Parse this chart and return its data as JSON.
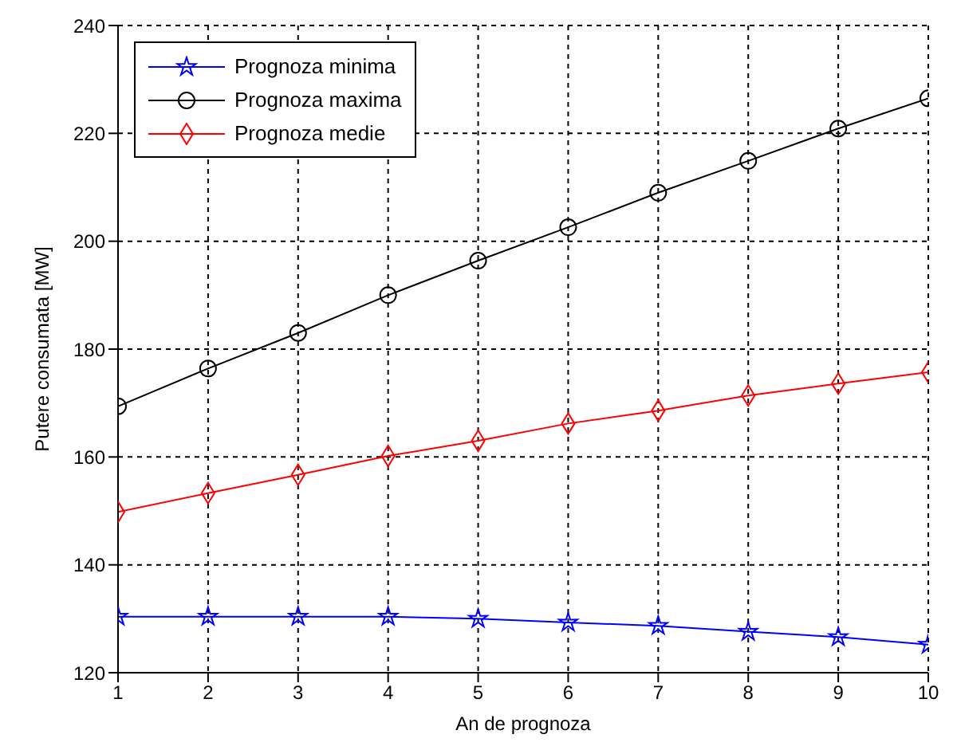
{
  "chart_data": {
    "type": "line",
    "xlabel": "An de prognoza",
    "ylabel": "Putere consumata [MW]",
    "x": [
      1,
      2,
      3,
      4,
      5,
      6,
      7,
      8,
      9,
      10
    ],
    "xlim": [
      1,
      10
    ],
    "xticks": [
      1,
      2,
      3,
      4,
      5,
      6,
      7,
      8,
      9,
      10
    ],
    "ylim": [
      120,
      240
    ],
    "yticks": [
      120,
      140,
      160,
      180,
      200,
      220,
      240
    ],
    "grid": true,
    "legend": "top left",
    "series": [
      {
        "name": "Prognoza minima",
        "color": "#0000ff",
        "marker": "star",
        "values": [
          130.4,
          130.4,
          130.4,
          130.4,
          130.0,
          129.3,
          128.7,
          127.6,
          126.6,
          125.2
        ]
      },
      {
        "name": "Prognoza maxima",
        "color": "#000000",
        "marker": "circle",
        "values": [
          169.4,
          176.4,
          183.0,
          190.0,
          196.4,
          202.6,
          209.0,
          214.9,
          220.9,
          226.5
        ]
      },
      {
        "name": "Prognoza medie",
        "color": "#ff0000",
        "marker": "diamond",
        "values": [
          149.8,
          153.3,
          156.7,
          160.2,
          163.0,
          166.2,
          168.6,
          171.4,
          173.6,
          175.7
        ]
      }
    ]
  }
}
